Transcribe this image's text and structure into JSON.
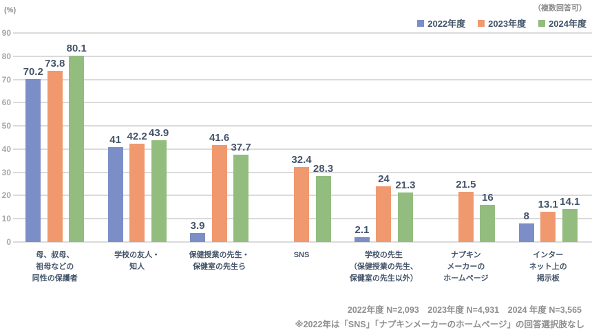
{
  "page": {
    "y_unit_label": "(%)",
    "multi_answer_note": "（複数回答可）"
  },
  "chart_data": {
    "type": "bar",
    "title": "",
    "xlabel": "",
    "ylabel": "(%)",
    "ylim": [
      0,
      90
    ],
    "ytick_step": 10,
    "grid": true,
    "legend_position": "top-right",
    "categories": [
      "母、叔母、\n祖母などの\n同性の保護者",
      "学校の友人・\n知人",
      "保健授業の先生・\n保健室の先生ら",
      "SNS",
      "学校の先生\n（保健授業の先生、\n保健室の先生以外）",
      "ナプキン\nメーカーの\nホームページ",
      "インター\nネット上の\n掲示板"
    ],
    "series": [
      {
        "name": "2022年度",
        "color": "#7b8ec8",
        "values": [
          70.2,
          41,
          3.9,
          null,
          2.1,
          null,
          8
        ]
      },
      {
        "name": "2023年度",
        "color": "#f0996f",
        "values": [
          73.8,
          42.2,
          41.6,
          32.4,
          24,
          21.5,
          13.1
        ]
      },
      {
        "name": "2024年度",
        "color": "#92bd7f",
        "values": [
          80.1,
          43.9,
          37.7,
          28.3,
          21.3,
          16,
          14.1
        ]
      }
    ]
  },
  "footer": {
    "sample_sizes": "2022年度 N=2,093　2023年度 N=4,931　2024 年度 N=3,565",
    "note": "※2022年は「SNS」「ナプキンメーカーのホームページ」の回答選択肢なし"
  }
}
